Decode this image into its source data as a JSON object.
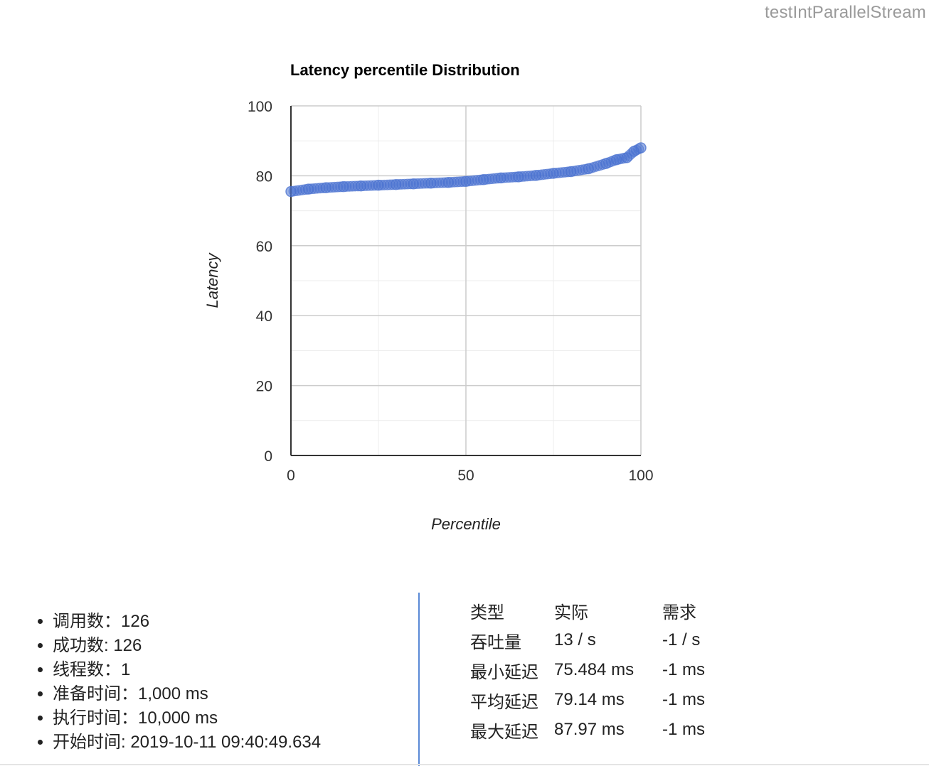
{
  "page": {
    "title": "testIntParallelStream"
  },
  "chart_data": {
    "type": "scatter",
    "title": "Latency percentile Distribution",
    "xlabel": "Percentile",
    "ylabel": "Latency",
    "xlim": [
      0,
      100
    ],
    "ylim": [
      0,
      100
    ],
    "xticks": [
      0,
      50,
      100
    ],
    "yticks": [
      0,
      20,
      40,
      60,
      80,
      100
    ],
    "grid": true,
    "point_color": "#4a72d0",
    "series": [
      {
        "points": [
          [
            0,
            75.5
          ],
          [
            5,
            76.2
          ],
          [
            10,
            76.6
          ],
          [
            15,
            76.9
          ],
          [
            20,
            77.1
          ],
          [
            25,
            77.3
          ],
          [
            30,
            77.5
          ],
          [
            35,
            77.7
          ],
          [
            40,
            77.9
          ],
          [
            45,
            78.1
          ],
          [
            50,
            78.4
          ],
          [
            55,
            78.9
          ],
          [
            60,
            79.4
          ],
          [
            65,
            79.7
          ],
          [
            70,
            80.1
          ],
          [
            75,
            80.7
          ],
          [
            80,
            81.2
          ],
          [
            85,
            82.0
          ],
          [
            90,
            83.5
          ],
          [
            93,
            84.6
          ],
          [
            96,
            85.2
          ],
          [
            98,
            87.0
          ],
          [
            100,
            88.0
          ]
        ]
      }
    ]
  },
  "stats": [
    {
      "label": "调用数：126"
    },
    {
      "label": "成功数: 126"
    },
    {
      "label": "线程数：1"
    },
    {
      "label": "准备时间：1,000 ms"
    },
    {
      "label": "执行时间：10,000 ms"
    },
    {
      "label": "开始时间: 2019-10-11 09:40:49.634"
    }
  ],
  "metrics": {
    "headers": [
      "类型",
      "实际",
      "需求"
    ],
    "rows": [
      [
        "吞吐量",
        "13 / s",
        "-1 / s"
      ],
      [
        "最小延迟",
        "75.484 ms",
        "-1 ms"
      ],
      [
        "平均延迟",
        "79.14 ms",
        "-1 ms"
      ],
      [
        "最大延迟",
        "87.97 ms",
        "-1 ms"
      ]
    ]
  }
}
